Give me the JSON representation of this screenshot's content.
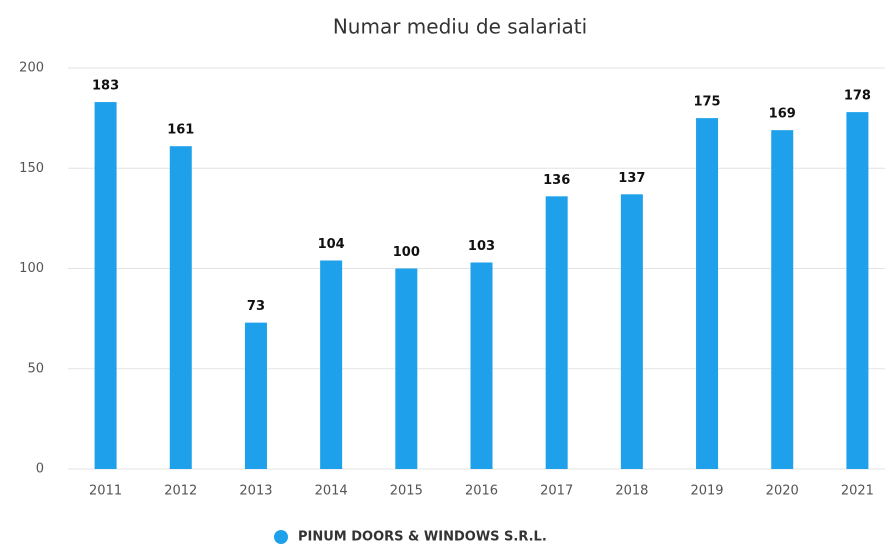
{
  "chart_data": {
    "type": "bar",
    "title": "Numar mediu de salariati",
    "categories": [
      "2011",
      "2012",
      "2013",
      "2014",
      "2015",
      "2016",
      "2017",
      "2018",
      "2019",
      "2020",
      "2021"
    ],
    "series": [
      {
        "name": "PINUM DOORS & WINDOWS S.R.L.",
        "color": "#1ea1ea",
        "values": [
          183,
          161,
          73,
          104,
          100,
          103,
          136,
          137,
          175,
          169,
          178
        ]
      }
    ],
    "ylim": [
      0,
      200
    ],
    "yticks": [
      0,
      50,
      100,
      150,
      200
    ],
    "grid": true,
    "legend": "bottom"
  }
}
